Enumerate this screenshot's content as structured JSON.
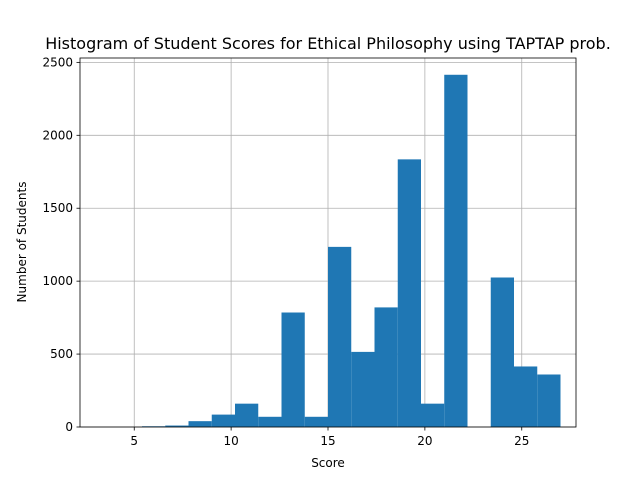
{
  "chart_data": {
    "type": "bar",
    "title": "Histogram of Student Scores for Ethical Philosophy using TAPTAP prob.",
    "xlabel": "Score",
    "ylabel": "Number of Students",
    "xlim": [
      2.2,
      27.8
    ],
    "ylim": [
      0,
      2530
    ],
    "xticks": [
      5,
      10,
      15,
      20,
      25
    ],
    "yticks": [
      0,
      500,
      1000,
      1500,
      2000,
      2500
    ],
    "grid": true,
    "color": "#1f77b4",
    "bins": [
      {
        "x0": 3.0,
        "x1": 4.2,
        "count": 0
      },
      {
        "x0": 4.2,
        "x1": 5.4,
        "count": 0
      },
      {
        "x0": 5.4,
        "x1": 6.6,
        "count": 5
      },
      {
        "x0": 6.6,
        "x1": 7.8,
        "count": 10
      },
      {
        "x0": 7.8,
        "x1": 9.0,
        "count": 40
      },
      {
        "x0": 9.0,
        "x1": 10.2,
        "count": 85
      },
      {
        "x0": 10.2,
        "x1": 11.4,
        "count": 160
      },
      {
        "x0": 11.4,
        "x1": 12.6,
        "count": 70
      },
      {
        "x0": 12.6,
        "x1": 13.8,
        "count": 785
      },
      {
        "x0": 13.8,
        "x1": 15.0,
        "count": 70
      },
      {
        "x0": 15.0,
        "x1": 16.2,
        "count": 1235
      },
      {
        "x0": 16.2,
        "x1": 17.4,
        "count": 515
      },
      {
        "x0": 17.4,
        "x1": 18.6,
        "count": 820
      },
      {
        "x0": 18.6,
        "x1": 19.8,
        "count": 1835
      },
      {
        "x0": 19.8,
        "x1": 21.0,
        "count": 160
      },
      {
        "x0": 21.0,
        "x1": 22.2,
        "count": 2415
      },
      {
        "x0": 22.2,
        "x1": 23.4,
        "count": 0
      },
      {
        "x0": 23.4,
        "x1": 24.6,
        "count": 1025
      },
      {
        "x0": 24.6,
        "x1": 25.8,
        "count": 415
      },
      {
        "x0": 25.8,
        "x1": 27.0,
        "count": 360
      }
    ]
  }
}
